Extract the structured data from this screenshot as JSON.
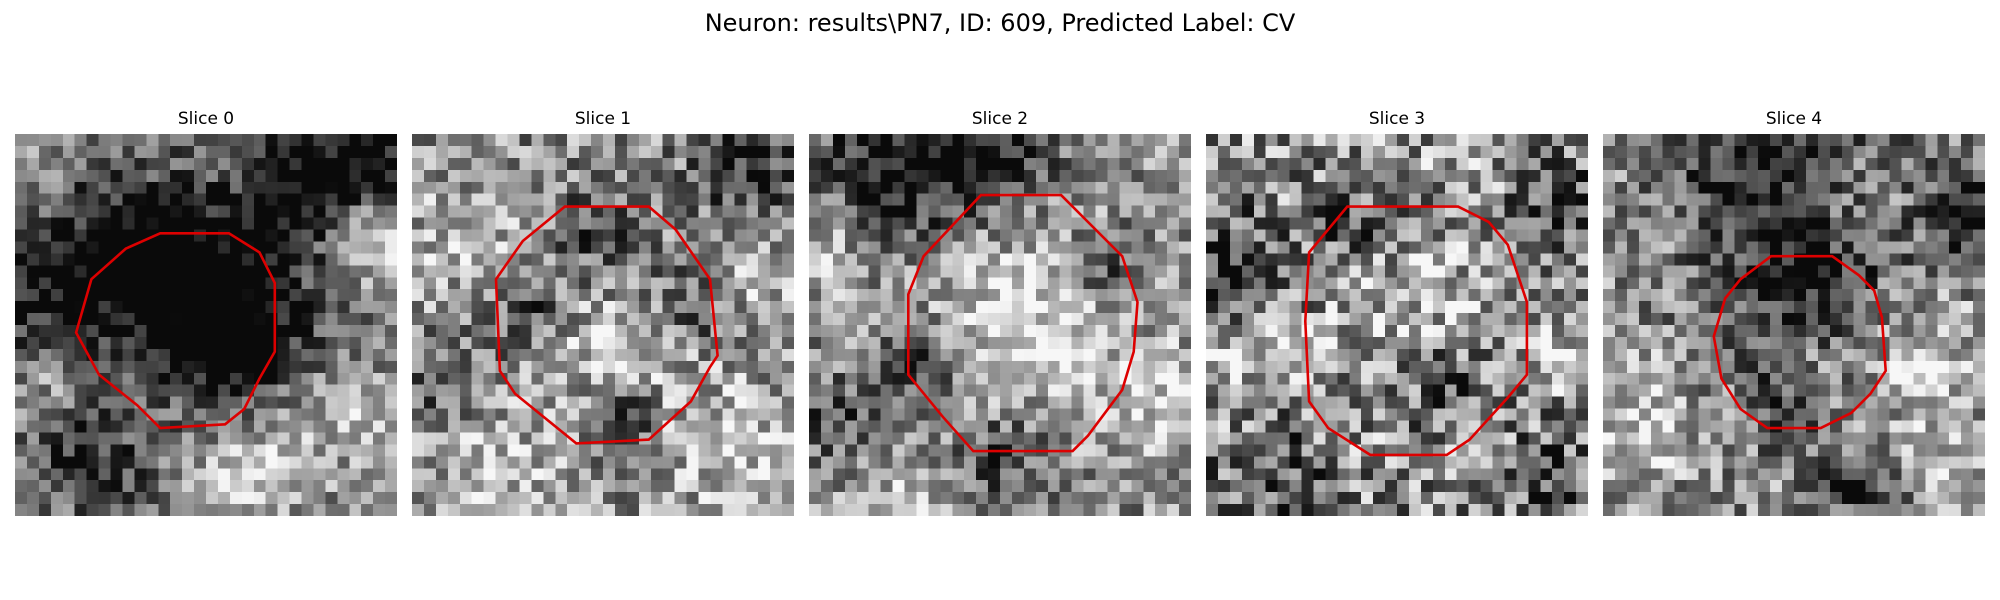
{
  "title": "Neuron: results\\PN7, ID: 609, Predicted Label: CV",
  "contour_color": "#dd0000",
  "panels": [
    {
      "label": "Slice 0",
      "contour": [
        [
          0.38,
          0.26
        ],
        [
          0.56,
          0.26
        ],
        [
          0.64,
          0.31
        ],
        [
          0.68,
          0.39
        ],
        [
          0.68,
          0.57
        ],
        [
          0.64,
          0.64
        ],
        [
          0.6,
          0.72
        ],
        [
          0.55,
          0.76
        ],
        [
          0.38,
          0.77
        ],
        [
          0.32,
          0.71
        ],
        [
          0.22,
          0.63
        ],
        [
          0.16,
          0.52
        ],
        [
          0.2,
          0.38
        ],
        [
          0.29,
          0.3
        ]
      ],
      "dark": [
        [
          0.5,
          0.42,
          0.2,
          1.0
        ],
        [
          0.3,
          0.3,
          0.14,
          0.8
        ],
        [
          0.58,
          0.55,
          0.12,
          0.7
        ],
        [
          0.05,
          0.45,
          0.12,
          0.7
        ],
        [
          0.88,
          0.06,
          0.14,
          0.9
        ],
        [
          0.72,
          0.18,
          0.1,
          0.6
        ],
        [
          0.28,
          0.9,
          0.1,
          0.5
        ],
        [
          0.12,
          0.82,
          0.09,
          0.5
        ],
        [
          0.95,
          0.6,
          0.08,
          0.4
        ]
      ],
      "light": [
        [
          0.92,
          0.28,
          0.09,
          0.8
        ],
        [
          0.94,
          0.68,
          0.1,
          0.6
        ],
        [
          0.55,
          0.9,
          0.12,
          0.5
        ],
        [
          0.1,
          0.62,
          0.08,
          0.5
        ],
        [
          0.72,
          0.78,
          0.08,
          0.4
        ]
      ],
      "noise": 0.55,
      "seed": 11
    },
    {
      "label": "Slice 1",
      "contour": [
        [
          0.4,
          0.19
        ],
        [
          0.62,
          0.19
        ],
        [
          0.69,
          0.25
        ],
        [
          0.78,
          0.38
        ],
        [
          0.8,
          0.58
        ],
        [
          0.78,
          0.61
        ],
        [
          0.73,
          0.7
        ],
        [
          0.62,
          0.8
        ],
        [
          0.43,
          0.81
        ],
        [
          0.27,
          0.68
        ],
        [
          0.23,
          0.62
        ],
        [
          0.22,
          0.38
        ],
        [
          0.29,
          0.28
        ]
      ],
      "dark": [
        [
          0.5,
          0.28,
          0.1,
          0.6
        ],
        [
          0.3,
          0.45,
          0.08,
          0.6
        ],
        [
          0.72,
          0.45,
          0.08,
          0.6
        ],
        [
          0.55,
          0.74,
          0.06,
          0.9
        ],
        [
          0.88,
          0.08,
          0.1,
          0.7
        ],
        [
          0.1,
          0.65,
          0.08,
          0.4
        ]
      ],
      "light": [
        [
          0.52,
          0.52,
          0.18,
          0.5
        ],
        [
          0.15,
          0.28,
          0.1,
          0.5
        ],
        [
          0.85,
          0.85,
          0.12,
          0.5
        ],
        [
          0.22,
          0.88,
          0.1,
          0.5
        ],
        [
          0.9,
          0.4,
          0.08,
          0.4
        ]
      ],
      "noise": 0.65,
      "seed": 23
    },
    {
      "label": "Slice 2",
      "contour": [
        [
          0.45,
          0.16
        ],
        [
          0.66,
          0.16
        ],
        [
          0.72,
          0.22
        ],
        [
          0.82,
          0.32
        ],
        [
          0.86,
          0.44
        ],
        [
          0.85,
          0.57
        ],
        [
          0.82,
          0.67
        ],
        [
          0.73,
          0.79
        ],
        [
          0.69,
          0.83
        ],
        [
          0.43,
          0.83
        ],
        [
          0.35,
          0.74
        ],
        [
          0.26,
          0.63
        ],
        [
          0.26,
          0.42
        ],
        [
          0.3,
          0.32
        ]
      ],
      "dark": [
        [
          0.25,
          0.08,
          0.16,
          0.9
        ],
        [
          0.5,
          0.05,
          0.1,
          0.7
        ],
        [
          0.3,
          0.6,
          0.08,
          0.6
        ],
        [
          0.5,
          0.85,
          0.1,
          0.6
        ],
        [
          0.78,
          0.35,
          0.07,
          0.6
        ],
        [
          0.08,
          0.75,
          0.09,
          0.5
        ]
      ],
      "light": [
        [
          0.55,
          0.5,
          0.2,
          0.7
        ],
        [
          0.06,
          0.3,
          0.08,
          0.5
        ],
        [
          0.92,
          0.7,
          0.1,
          0.5
        ],
        [
          0.22,
          0.95,
          0.1,
          0.4
        ]
      ],
      "noise": 0.6,
      "seed": 37
    },
    {
      "label": "Slice 3",
      "contour": [
        [
          0.37,
          0.19
        ],
        [
          0.66,
          0.19
        ],
        [
          0.74,
          0.23
        ],
        [
          0.79,
          0.29
        ],
        [
          0.84,
          0.44
        ],
        [
          0.84,
          0.63
        ],
        [
          0.79,
          0.69
        ],
        [
          0.69,
          0.8
        ],
        [
          0.63,
          0.84
        ],
        [
          0.43,
          0.84
        ],
        [
          0.32,
          0.77
        ],
        [
          0.27,
          0.7
        ],
        [
          0.26,
          0.49
        ],
        [
          0.27,
          0.31
        ]
      ],
      "dark": [
        [
          0.4,
          0.25,
          0.08,
          0.6
        ],
        [
          0.62,
          0.65,
          0.08,
          0.6
        ],
        [
          0.08,
          0.35,
          0.09,
          0.7
        ],
        [
          0.92,
          0.2,
          0.08,
          0.6
        ],
        [
          0.18,
          0.9,
          0.1,
          0.5
        ],
        [
          0.9,
          0.9,
          0.08,
          0.5
        ]
      ],
      "light": [
        [
          0.55,
          0.45,
          0.16,
          0.5
        ],
        [
          0.08,
          0.6,
          0.08,
          0.5
        ],
        [
          0.95,
          0.55,
          0.08,
          0.4
        ]
      ],
      "noise": 0.8,
      "seed": 53
    },
    {
      "label": "Slice 4",
      "contour": [
        [
          0.44,
          0.32
        ],
        [
          0.6,
          0.32
        ],
        [
          0.67,
          0.37
        ],
        [
          0.71,
          0.41
        ],
        [
          0.73,
          0.48
        ],
        [
          0.74,
          0.62
        ],
        [
          0.7,
          0.68
        ],
        [
          0.65,
          0.73
        ],
        [
          0.57,
          0.77
        ],
        [
          0.43,
          0.77
        ],
        [
          0.36,
          0.72
        ],
        [
          0.31,
          0.64
        ],
        [
          0.29,
          0.53
        ],
        [
          0.32,
          0.43
        ],
        [
          0.36,
          0.38
        ]
      ],
      "dark": [
        [
          0.52,
          0.4,
          0.14,
          0.8
        ],
        [
          0.45,
          0.7,
          0.08,
          0.5
        ],
        [
          0.45,
          0.05,
          0.18,
          0.9
        ],
        [
          0.95,
          0.22,
          0.08,
          0.8
        ],
        [
          0.68,
          0.93,
          0.08,
          0.6
        ]
      ],
      "light": [
        [
          0.52,
          0.55,
          0.1,
          0.4
        ],
        [
          0.85,
          0.6,
          0.1,
          0.6
        ],
        [
          0.1,
          0.75,
          0.1,
          0.6
        ],
        [
          0.6,
          0.15,
          0.09,
          0.5
        ],
        [
          0.9,
          0.88,
          0.08,
          0.5
        ]
      ],
      "noise": 0.65,
      "seed": 71
    }
  ]
}
